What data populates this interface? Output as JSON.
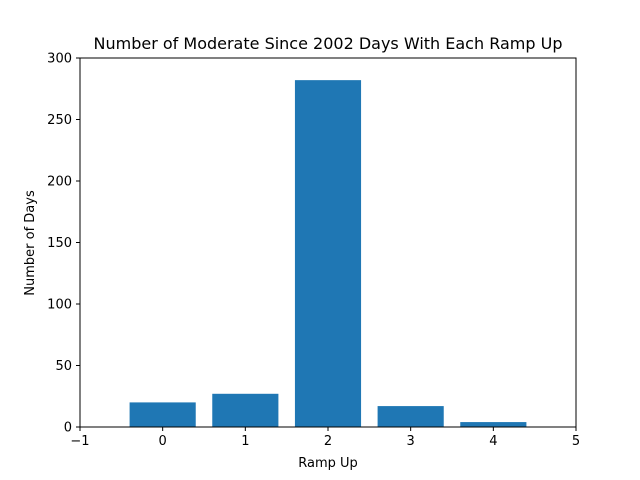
{
  "chart_data": {
    "type": "bar",
    "title": "Number of Moderate Since 2002 Days With Each Ramp Up",
    "xlabel": "Ramp Up",
    "ylabel": "Number of Days",
    "x": [
      0,
      1,
      2,
      3,
      4
    ],
    "values": [
      20,
      27,
      282,
      17,
      4
    ],
    "bar_width": 0.8,
    "xlim": [
      -1,
      5
    ],
    "ylim": [
      0,
      300
    ],
    "xticks": [
      -1,
      0,
      1,
      2,
      3,
      4,
      5
    ],
    "yticks": [
      0,
      50,
      100,
      150,
      200,
      250,
      300
    ],
    "grid": false,
    "legend": false,
    "bar_color": "#1f77b4"
  }
}
